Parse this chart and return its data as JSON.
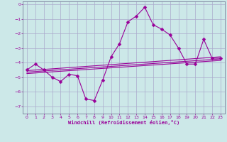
{
  "xlabel": "Windchill (Refroidissement éolien,°C)",
  "bg_color": "#cce8e8",
  "grid_color": "#aaaacc",
  "line_color": "#990099",
  "xlim": [
    -0.5,
    23.5
  ],
  "ylim": [
    -7.5,
    0.2
  ],
  "yticks": [
    0,
    -1,
    -2,
    -3,
    -4,
    -5,
    -6,
    -7
  ],
  "xticks": [
    0,
    1,
    2,
    3,
    4,
    5,
    6,
    7,
    8,
    9,
    10,
    11,
    12,
    13,
    14,
    15,
    16,
    17,
    18,
    19,
    20,
    21,
    22,
    23
  ],
  "main_series_x": [
    0,
    1,
    2,
    3,
    4,
    5,
    6,
    7,
    8,
    9,
    10,
    11,
    12,
    13,
    14,
    15,
    16,
    17,
    18,
    19,
    20,
    21,
    22,
    23
  ],
  "main_series_y": [
    -4.5,
    -4.1,
    -4.5,
    -5.0,
    -5.3,
    -4.8,
    -4.9,
    -6.5,
    -6.6,
    -5.2,
    -3.6,
    -2.7,
    -1.2,
    -0.8,
    -0.2,
    -1.4,
    -1.7,
    -2.1,
    -3.0,
    -4.1,
    -4.1,
    -2.4,
    -3.7,
    -3.7
  ],
  "trend1_x": [
    0,
    23
  ],
  "trend1_y": [
    -4.55,
    -3.6
  ],
  "trend2_x": [
    0,
    23
  ],
  "trend2_y": [
    -4.65,
    -3.75
  ],
  "trend3_x": [
    0,
    23
  ],
  "trend3_y": [
    -4.75,
    -3.85
  ],
  "marker": "D",
  "marker_size": 2.5,
  "linewidth": 0.8
}
